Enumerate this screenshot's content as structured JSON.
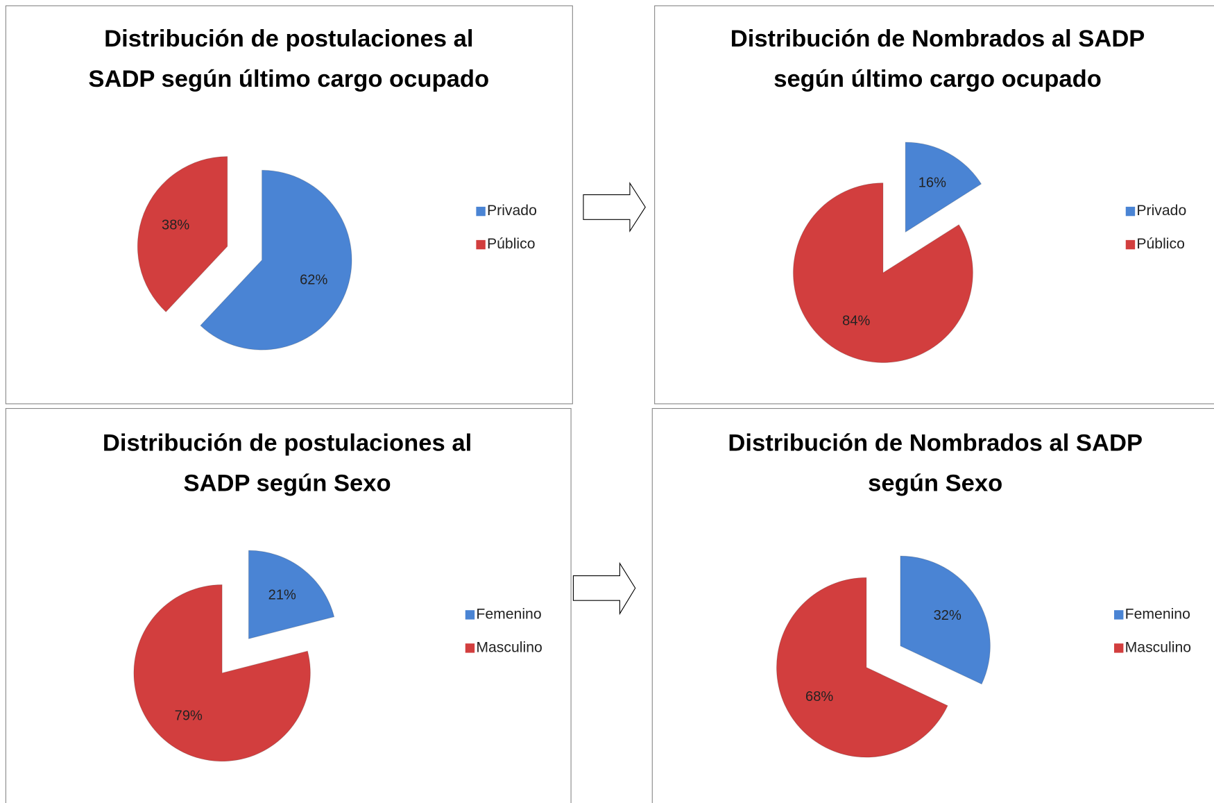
{
  "chart_data": [
    {
      "type": "pie",
      "title": [
        "Distribución de postulaciones al",
        "SADP según último cargo ocupado"
      ],
      "categories": [
        "Privado",
        "Público"
      ],
      "values": [
        62,
        38
      ],
      "value_labels": [
        "62%",
        "38%"
      ],
      "colors": [
        "#4a84d4",
        "#d23e3e"
      ],
      "legend": "right"
    },
    {
      "type": "pie",
      "title": [
        "Distribución de Nombrados al SADP",
        "según último cargo ocupado"
      ],
      "categories": [
        "Privado",
        "Público"
      ],
      "values": [
        16,
        84
      ],
      "value_labels": [
        "16%",
        "84%"
      ],
      "colors": [
        "#4a84d4",
        "#d23e3e"
      ],
      "legend": "right"
    },
    {
      "type": "pie",
      "title": [
        "Distribución de postulaciones al",
        "SADP según Sexo"
      ],
      "categories": [
        "Femenino",
        "Masculino"
      ],
      "values": [
        21,
        79
      ],
      "value_labels": [
        "21%",
        "79%"
      ],
      "colors": [
        "#4a84d4",
        "#d23e3e"
      ],
      "legend": "right"
    },
    {
      "type": "pie",
      "title": [
        "Distribución de Nombrados al SADP",
        "según Sexo"
      ],
      "categories": [
        "Femenino",
        "Masculino"
      ],
      "values": [
        32,
        68
      ],
      "value_labels": [
        "32%",
        "68%"
      ],
      "colors": [
        "#4a84d4",
        "#d23e3e"
      ],
      "legend": "right"
    }
  ]
}
